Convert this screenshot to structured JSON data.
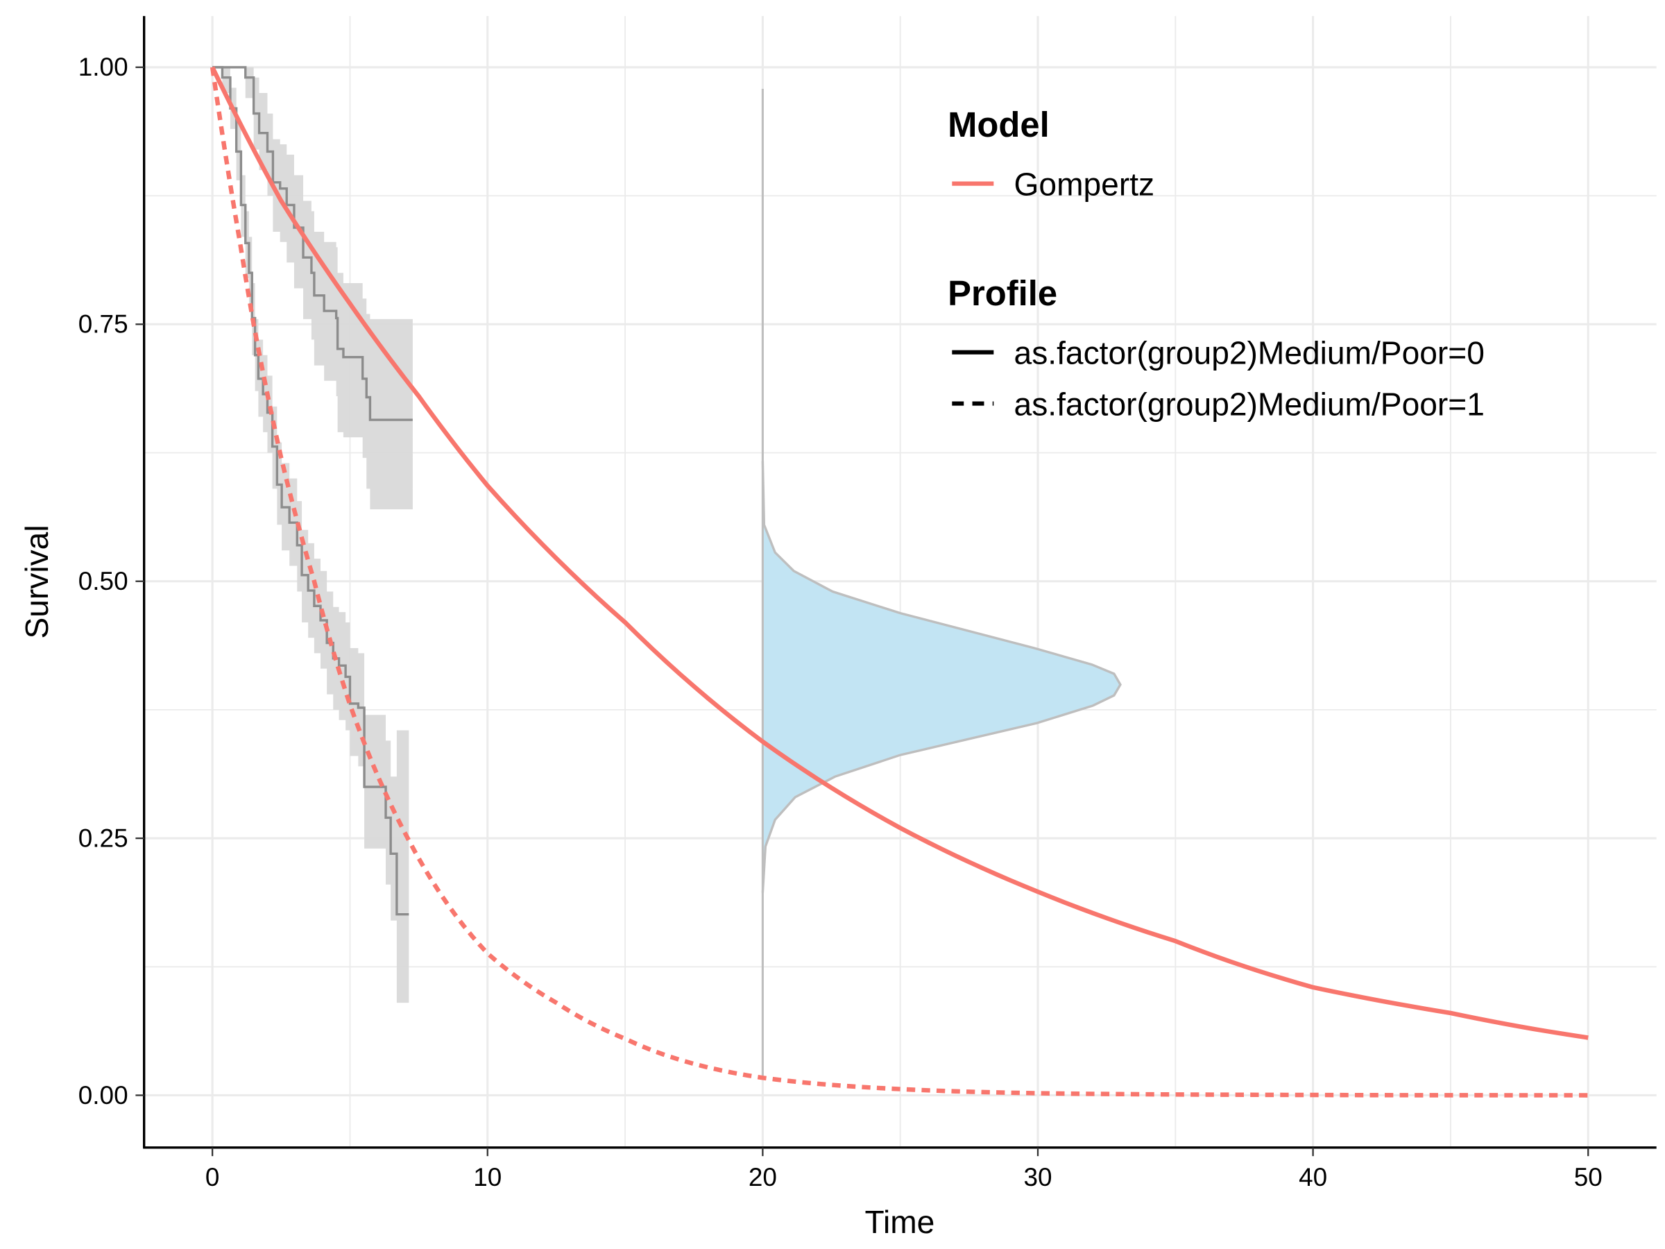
{
  "chart_data": {
    "type": "line",
    "xlabel": "Time",
    "ylabel": "Survival",
    "xlim": [
      -2.5,
      52.5
    ],
    "ylim": [
      -0.05,
      1.05
    ],
    "x_ticks": [
      "0",
      "10",
      "20",
      "30",
      "40",
      "50"
    ],
    "x_tick_values": [
      0,
      10,
      20,
      30,
      40,
      50
    ],
    "y_ticks": [
      "0.00",
      "0.25",
      "0.50",
      "0.75",
      "1.00"
    ],
    "y_tick_values": [
      0,
      0.25,
      0.5,
      0.75,
      1.0
    ],
    "grid": true,
    "legend_position": "top-right",
    "colors": {
      "model": "#F8766D",
      "km": "#8c8c8c",
      "ci": "#d9d9d9",
      "density_fill": "#c2e4f3",
      "density_line": "#bebebe"
    },
    "legend": {
      "model_title": "Model",
      "model_entries": [
        "Gompertz"
      ],
      "profile_title": "Profile",
      "profile_entries": [
        "as.factor(group2)Medium/Poor=0",
        "as.factor(group2)Medium/Poor=1"
      ]
    },
    "model_curves": [
      {
        "model": "Gompertz",
        "profile": "as.factor(group2)Medium/Poor=0",
        "linetype": "solid",
        "x": [
          0,
          2.5,
          5,
          7.5,
          10,
          15,
          20,
          25,
          30,
          35,
          40,
          45,
          50
        ],
        "y": [
          1,
          0.87,
          0.77,
          0.68,
          0.593,
          0.46,
          0.344,
          0.26,
          0.198,
          0.15,
          0.105,
          0.08,
          0.056
        ]
      },
      {
        "model": "Gompertz",
        "profile": "as.factor(group2)Medium/Poor=1",
        "linetype": "dashed",
        "x": [
          0,
          1,
          1.5,
          2.5,
          3.7,
          5,
          7.1,
          10,
          12.5,
          15,
          20,
          25,
          30,
          40,
          50
        ],
        "y": [
          1,
          0.83,
          0.75,
          0.62,
          0.5,
          0.38,
          0.25,
          0.138,
          0.09,
          0.055,
          0.017,
          0.006,
          0.002,
          0.0003,
          0
        ]
      }
    ],
    "kaplan_meier": [
      {
        "profile": "as.factor(group2)Medium/Poor=0",
        "end_time": 7.28,
        "steps_t_s_lo_hi": [
          [
            0,
            1,
            1,
            1
          ],
          [
            1.2,
            0.99,
            0.97,
            1
          ],
          [
            1.5,
            0.955,
            0.92,
            0.99
          ],
          [
            1.7,
            0.936,
            0.9,
            0.975
          ],
          [
            2.0,
            0.918,
            0.875,
            0.955
          ],
          [
            2.2,
            0.888,
            0.84,
            0.93
          ],
          [
            2.46,
            0.882,
            0.83,
            0.925
          ],
          [
            2.7,
            0.866,
            0.81,
            0.915
          ],
          [
            2.97,
            0.844,
            0.785,
            0.895
          ],
          [
            3.3,
            0.815,
            0.755,
            0.87
          ],
          [
            3.6,
            0.8,
            0.735,
            0.86
          ],
          [
            3.7,
            0.778,
            0.71,
            0.84
          ],
          [
            4.06,
            0.763,
            0.695,
            0.83
          ],
          [
            4.5,
            0.756,
            0.68,
            0.825
          ],
          [
            4.55,
            0.726,
            0.645,
            0.8
          ],
          [
            4.76,
            0.718,
            0.64,
            0.79
          ],
          [
            5.46,
            0.697,
            0.62,
            0.775
          ],
          [
            5.6,
            0.679,
            0.59,
            0.76
          ],
          [
            5.73,
            0.657,
            0.57,
            0.755
          ]
        ]
      },
      {
        "profile": "as.factor(group2)Medium/Poor=1",
        "end_time": 7.14,
        "steps_t_s_lo_hi": [
          [
            0,
            1,
            1,
            1
          ],
          [
            0.36,
            0.99,
            0.975,
            1
          ],
          [
            0.65,
            0.96,
            0.94,
            0.98
          ],
          [
            0.87,
            0.918,
            0.89,
            0.945
          ],
          [
            1.04,
            0.866,
            0.835,
            0.895
          ],
          [
            1.2,
            0.829,
            0.795,
            0.86
          ],
          [
            1.33,
            0.8,
            0.765,
            0.835
          ],
          [
            1.44,
            0.756,
            0.72,
            0.79
          ],
          [
            1.55,
            0.72,
            0.685,
            0.755
          ],
          [
            1.67,
            0.697,
            0.66,
            0.735
          ],
          [
            1.84,
            0.682,
            0.645,
            0.72
          ],
          [
            2.0,
            0.664,
            0.625,
            0.7
          ],
          [
            2.18,
            0.631,
            0.59,
            0.67
          ],
          [
            2.35,
            0.594,
            0.555,
            0.635
          ],
          [
            2.52,
            0.572,
            0.53,
            0.615
          ],
          [
            2.8,
            0.557,
            0.515,
            0.6
          ],
          [
            3.08,
            0.535,
            0.49,
            0.578
          ],
          [
            3.25,
            0.506,
            0.46,
            0.55
          ],
          [
            3.48,
            0.491,
            0.445,
            0.537
          ],
          [
            3.7,
            0.476,
            0.43,
            0.522
          ],
          [
            3.93,
            0.462,
            0.415,
            0.51
          ],
          [
            4.16,
            0.44,
            0.39,
            0.49
          ],
          [
            4.39,
            0.425,
            0.375,
            0.475
          ],
          [
            4.6,
            0.418,
            0.365,
            0.47
          ],
          [
            4.84,
            0.407,
            0.355,
            0.46
          ],
          [
            5.0,
            0.381,
            0.33,
            0.435
          ],
          [
            5.3,
            0.377,
            0.32,
            0.43
          ],
          [
            5.52,
            0.3,
            0.24,
            0.37
          ],
          [
            6.3,
            0.27,
            0.205,
            0.345
          ],
          [
            6.48,
            0.235,
            0.17,
            0.31
          ],
          [
            6.7,
            0.176,
            0.09,
            0.355
          ]
        ]
      }
    ],
    "density_at_time": {
      "time": 20,
      "line_range_survival": [
        0.017,
        0.979
      ],
      "outline_survival": [
        0.617,
        0.555,
        0.528,
        0.51,
        0.49,
        0.469,
        0.435,
        0.419,
        0.41,
        0.3995,
        0.389,
        0.379,
        0.362,
        0.331,
        0.31,
        0.29,
        0.268,
        0.242,
        0.197
      ],
      "outline_time": [
        20,
        20.05,
        20.45,
        21.13,
        22.54,
        25,
        29.87,
        31.96,
        32.77,
        33.0,
        32.77,
        32,
        29.96,
        25,
        22.63,
        21.18,
        20.45,
        20.1,
        20
      ]
    }
  }
}
